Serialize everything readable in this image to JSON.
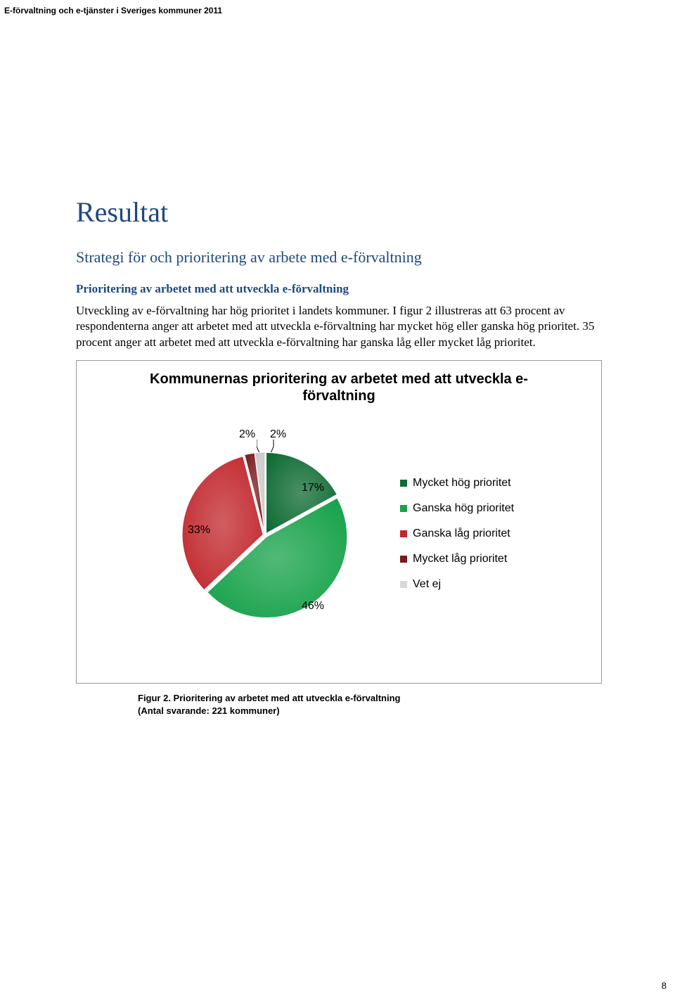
{
  "header": "E-förvaltning och e-tjänster i Sveriges kommuner 2011",
  "page_number": "8",
  "headings": {
    "h1": "Resultat",
    "h2": "Strategi för och prioritering av arbete med e-förvaltning",
    "h3": "Prioritering av arbetet med att utveckla e-förvaltning"
  },
  "body": "Utveckling av e-förvaltning har hög prioritet i landets kommuner. I figur 2 illustreras att 63 procent av respondenterna anger att arbetet med att utveckla e-förvaltning har mycket hög eller ganska hög prioritet. 35 procent anger att arbetet med att utveckla e-förvaltning har ganska låg eller mycket låg prioritet.",
  "chart": {
    "type": "pie",
    "title": "Kommunernas prioritering av arbetet med att utveckla e-förvaltning",
    "background_color": "#ffffff",
    "border_color": "#999999",
    "label_fontsize": 16,
    "title_fontsize": 20,
    "slices": [
      {
        "label": "Mycket hög prioritet",
        "value": 17,
        "text": "17%",
        "color": "#0f6b33"
      },
      {
        "label": "Ganska hög prioritet",
        "value": 46,
        "text": "46%",
        "color": "#17a24a"
      },
      {
        "label": "Ganska låg prioritet",
        "value": 33,
        "text": "33%",
        "color": "#c1282d"
      },
      {
        "label": "Mycket låg prioritet",
        "value": 2,
        "text": "2%",
        "color": "#7a1a1d"
      },
      {
        "label": "Vet ej",
        "value": 2,
        "text": "2%",
        "color": "#c9c9c9"
      }
    ],
    "legend_colors": {
      "vetej_swatch": "#d9d9d9"
    }
  },
  "caption": {
    "line1": "Figur 2. Prioritering av arbetet med att utveckla e-förvaltning",
    "line2": "(Antal svarande: 221 kommuner)"
  }
}
